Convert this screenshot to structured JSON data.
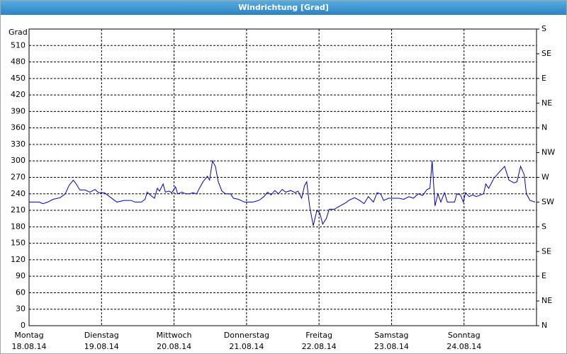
{
  "chart_data": {
    "type": "line",
    "title": "Windrichtung [Grad]",
    "y_label": "Grad",
    "xlim": [
      0,
      7
    ],
    "xticks": [
      {
        "value": 0,
        "label": "Montag",
        "date": "18.08.14"
      },
      {
        "value": 1,
        "label": "Dienstag",
        "date": "19.08.14"
      },
      {
        "value": 2,
        "label": "Mittwoch",
        "date": "20.08.14"
      },
      {
        "value": 3,
        "label": "Donnerstag",
        "date": "21.08.14"
      },
      {
        "value": 4,
        "label": "Freitag",
        "date": "22.08.14"
      },
      {
        "value": 5,
        "label": "Samstag",
        "date": "23.08.14"
      },
      {
        "value": 6,
        "label": "Sonntag",
        "date": "24.08.14"
      }
    ],
    "ylim": [
      0,
      540
    ],
    "yticks": [
      0,
      30,
      60,
      90,
      120,
      150,
      180,
      210,
      240,
      270,
      300,
      330,
      360,
      390,
      420,
      450,
      480,
      510
    ],
    "y2lim": [
      0,
      540
    ],
    "y2ticks": [
      {
        "value": 0,
        "label": "N"
      },
      {
        "value": 45,
        "label": "NE"
      },
      {
        "value": 90,
        "label": "E"
      },
      {
        "value": 135,
        "label": "SE"
      },
      {
        "value": 180,
        "label": "S"
      },
      {
        "value": 225,
        "label": "SW"
      },
      {
        "value": 270,
        "label": "W"
      },
      {
        "value": 315,
        "label": "NW"
      },
      {
        "value": 360,
        "label": "N"
      },
      {
        "value": 405,
        "label": "NE"
      },
      {
        "value": 450,
        "label": "E"
      },
      {
        "value": 495,
        "label": "SE"
      },
      {
        "value": 540,
        "label": "S"
      }
    ],
    "grid": true,
    "x": [
      0,
      0.14,
      0.19,
      0.26,
      0.33,
      0.43,
      0.5,
      0.55,
      0.61,
      0.65,
      0.7,
      0.77,
      0.84,
      0.91,
      0.96,
      1.04,
      1.11,
      1.21,
      1.31,
      1.41,
      1.46,
      1.55,
      1.6,
      1.63,
      1.68,
      1.73,
      1.77,
      1.8,
      1.85,
      1.88,
      1.93,
      1.97,
      2.02,
      2.05,
      2.11,
      2.16,
      2.21,
      2.26,
      2.31,
      2.37,
      2.4,
      2.46,
      2.49,
      2.53,
      2.57,
      2.61,
      2.66,
      2.71,
      2.78,
      2.82,
      2.89,
      2.97,
      3.09,
      3.17,
      3.24,
      3.29,
      3.34,
      3.39,
      3.44,
      3.49,
      3.54,
      3.61,
      3.67,
      3.71,
      3.76,
      3.8,
      3.83,
      3.87,
      3.92,
      3.97,
      4.01,
      4.05,
      4.1,
      4.14,
      4.21,
      4.29,
      4.36,
      4.41,
      4.49,
      4.56,
      4.62,
      4.68,
      4.75,
      4.8,
      4.85,
      4.89,
      4.96,
      5,
      5.1,
      5.17,
      5.24,
      5.3,
      5.37,
      5.43,
      5.49,
      5.53,
      5.56,
      5.6,
      5.64,
      5.68,
      5.73,
      5.77,
      5.84,
      5.87,
      5.9,
      5.95,
      5.99,
      6.02,
      6.07,
      6.12,
      6.17,
      6.23,
      6.27,
      6.3,
      6.34,
      6.41,
      6.49,
      6.56,
      6.62,
      6.69,
      6.73,
      6.78,
      6.83,
      6.86,
      6.91,
      6.98
    ],
    "series": [
      {
        "color": "#0000c0",
        "values": [
          225,
          225,
          222,
          225,
          230,
          233,
          240,
          255,
          265,
          258,
          247,
          247,
          243,
          248,
          242,
          242,
          235,
          225,
          228,
          228,
          225,
          225,
          230,
          243,
          237,
          232,
          250,
          245,
          258,
          243,
          245,
          242,
          253,
          240,
          243,
          240,
          240,
          242,
          240,
          255,
          262,
          272,
          265,
          300,
          290,
          262,
          245,
          240,
          240,
          232,
          230,
          225,
          225,
          228,
          235,
          243,
          238,
          246,
          240,
          248,
          243,
          246,
          242,
          245,
          232,
          255,
          262,
          218,
          182,
          210,
          205,
          185,
          195,
          212,
          212,
          218,
          223,
          228,
          233,
          228,
          222,
          235,
          225,
          242,
          240,
          228,
          232,
          232,
          232,
          230,
          235,
          232,
          240,
          237,
          248,
          250,
          300,
          218,
          240,
          225,
          242,
          225,
          225,
          225,
          240,
          238,
          225,
          242,
          235,
          238,
          235,
          238,
          240,
          258,
          250,
          268,
          280,
          290,
          265,
          260,
          262,
          290,
          275,
          240,
          228,
          225
        ]
      }
    ]
  }
}
